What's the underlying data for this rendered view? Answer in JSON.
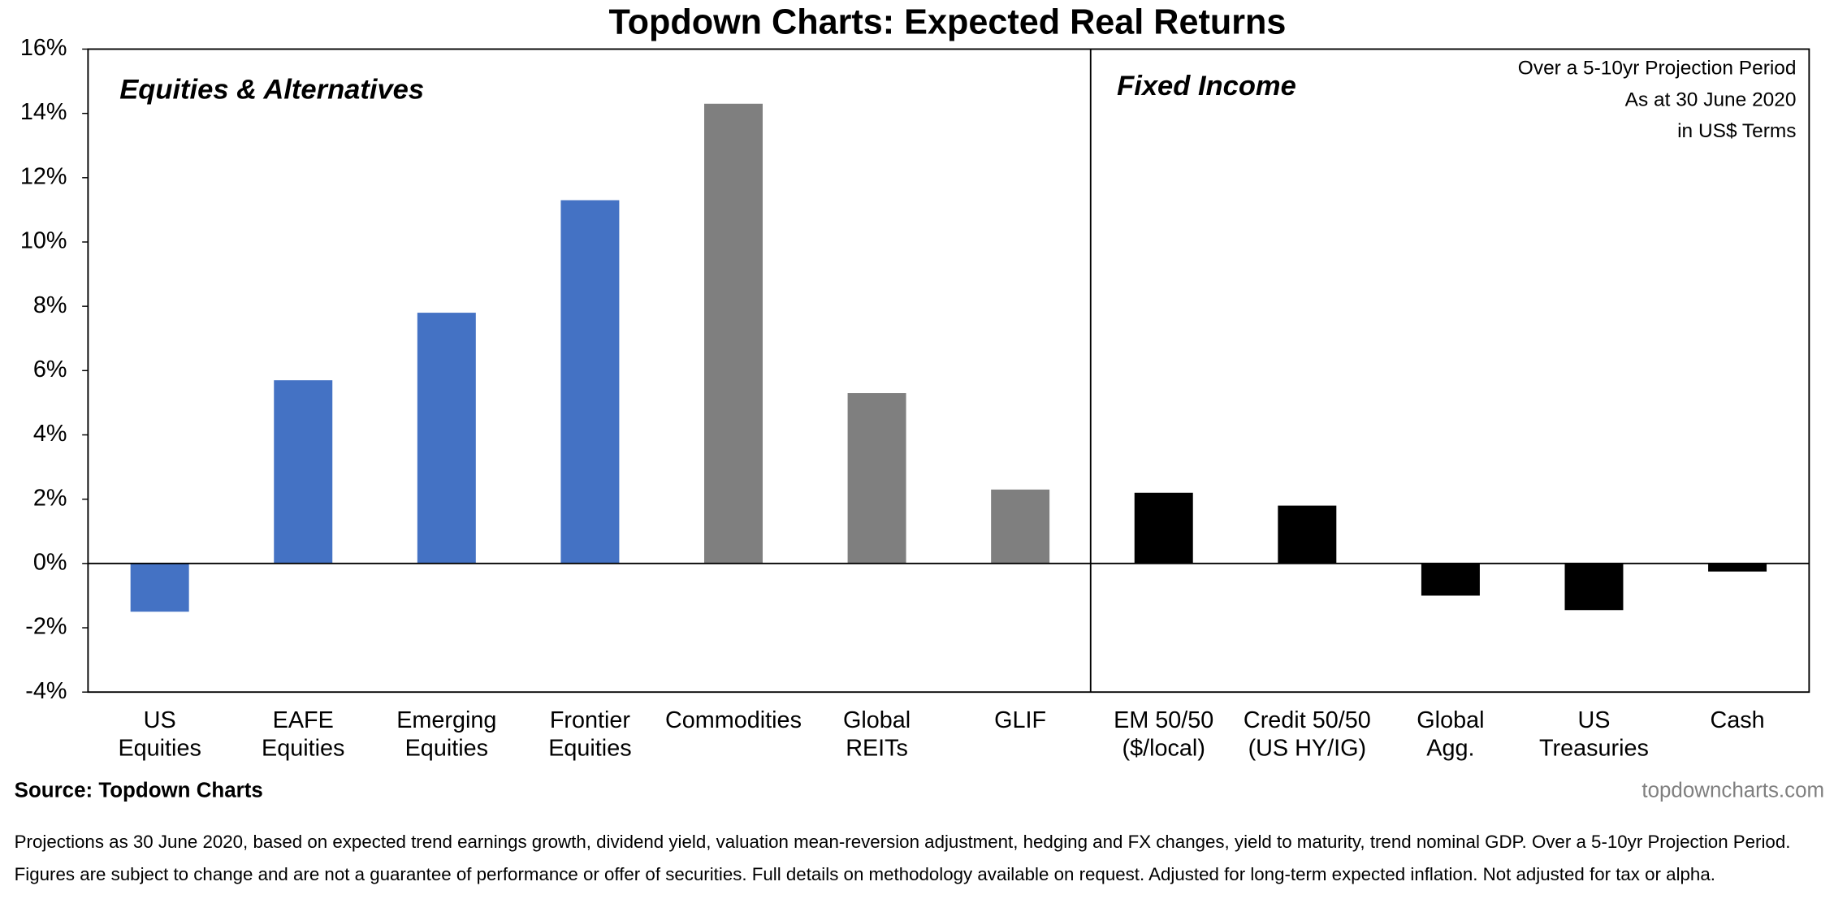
{
  "chart_data": {
    "type": "bar",
    "title": "Topdown Charts: Expected Real Returns",
    "sections": [
      "Equities & Alternatives",
      "Fixed Income"
    ],
    "note": [
      "Over a 5-10yr Projection Period",
      "As at 30 June 2020",
      "in US$ Terms"
    ],
    "categories": [
      [
        "US",
        "Equities"
      ],
      [
        "EAFE",
        "Equities"
      ],
      [
        "Emerging",
        "Equities"
      ],
      [
        "Frontier",
        "Equities"
      ],
      [
        "Commodities"
      ],
      [
        "Global",
        "REITs"
      ],
      [
        "GLIF"
      ],
      [
        "EM 50/50",
        "($/local)"
      ],
      [
        "Credit 50/50",
        "(US HY/IG)"
      ],
      [
        "Global",
        "Agg."
      ],
      [
        "US",
        "Treasuries"
      ],
      [
        "Cash"
      ]
    ],
    "values": [
      -1.5,
      5.7,
      7.8,
      11.3,
      14.3,
      5.3,
      2.3,
      2.2,
      1.8,
      -1.0,
      -1.45,
      -0.25
    ],
    "colors": [
      "#4472c4",
      "#4472c4",
      "#4472c4",
      "#4472c4",
      "#7f7f7f",
      "#7f7f7f",
      "#7f7f7f",
      "#000000",
      "#000000",
      "#000000",
      "#000000",
      "#000000"
    ],
    "ylim": [
      -4,
      16
    ],
    "yticks": [
      {
        "value": -4,
        "label": "-4%"
      },
      {
        "value": -2,
        "label": "-2%"
      },
      {
        "value": 0,
        "label": "0%"
      },
      {
        "value": 2,
        "label": "2%"
      },
      {
        "value": 4,
        "label": "4%"
      },
      {
        "value": 6,
        "label": "6%"
      },
      {
        "value": 8,
        "label": "8%"
      },
      {
        "value": 10,
        "label": "10%"
      },
      {
        "value": 12,
        "label": "12%"
      },
      {
        "value": 14,
        "label": "14%"
      },
      {
        "value": 16,
        "label": "16%"
      }
    ],
    "grid": false,
    "source": "Source: Topdown Charts",
    "website": "topdowncharts.com",
    "footnotes": [
      "Projections as 30 June 2020, based on expected trend earnings growth, dividend yield, valuation mean-reversion adjustment, hedging and FX changes, yield to maturity, trend nominal GDP. Over a  5-10yr Projection Period.",
      "Figures are subject to change and are not a guarantee of performance or offer of securities.  Full details on methodology available on request.  Adjusted for long-term expected inflation.  Not adjusted for tax or alpha."
    ]
  }
}
